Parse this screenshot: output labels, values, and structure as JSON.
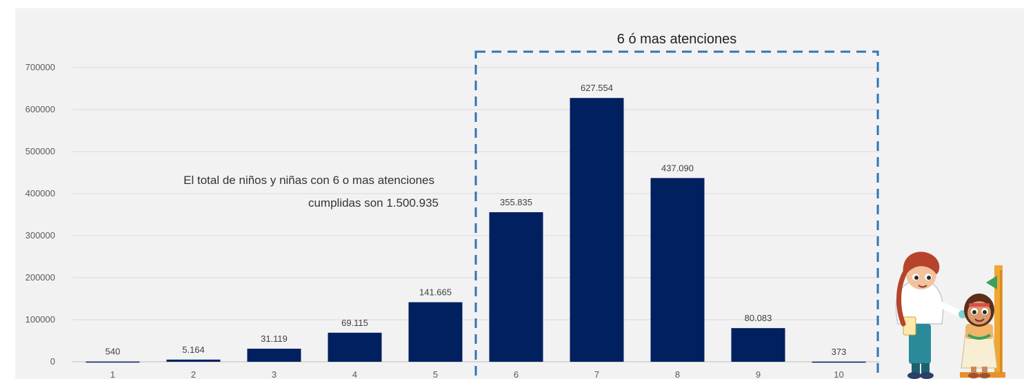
{
  "chart_data": {
    "type": "bar",
    "categories": [
      "1",
      "2",
      "3",
      "4",
      "5",
      "6",
      "7",
      "8",
      "9",
      "10"
    ],
    "values": [
      540,
      5164,
      31119,
      69115,
      141665,
      355835,
      627554,
      437090,
      80083,
      373
    ],
    "value_labels": [
      "540",
      "5.164",
      "31.119",
      "69.115",
      "141.665",
      "355.835",
      "627.554",
      "437.090",
      "80.083",
      "373"
    ],
    "y_ticks": [
      "0",
      "100000",
      "200000",
      "300000",
      "400000",
      "500000",
      "600000",
      "700000"
    ],
    "ylim": [
      0,
      700000
    ],
    "grid": true,
    "bar_color": "#002060",
    "highlight": {
      "label": "6 ó mas atenciones",
      "categories": [
        "6",
        "7",
        "8",
        "9",
        "10"
      ],
      "border_color": "#2e75b6"
    },
    "annotation": {
      "line1": "El total de niños y niñas con 6 o mas atenciones",
      "line2": "cumplidas son 1.500.935"
    }
  }
}
